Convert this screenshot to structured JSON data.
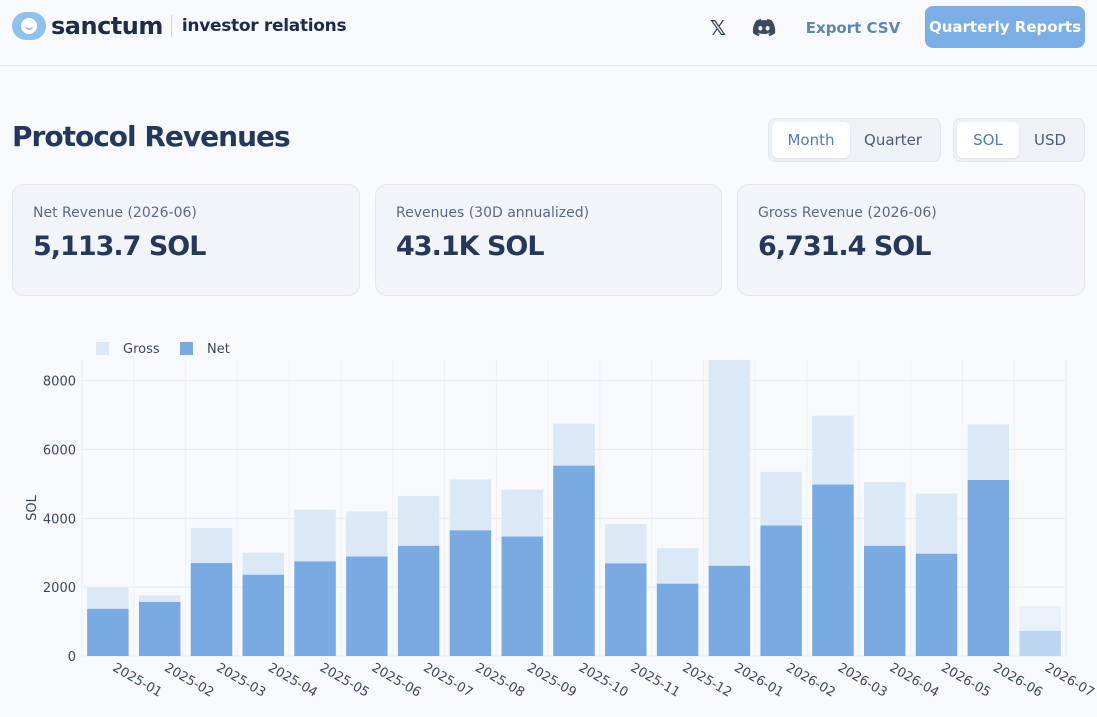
{
  "header": {
    "brand": "sanctum",
    "subtitle": "investor relations",
    "x_icon": "x-logo-icon",
    "discord_icon": "discord-icon",
    "export_label": "Export CSV",
    "reports_label": "Quarterly Reports"
  },
  "page": {
    "title": "Protocol Revenues",
    "period_options": [
      "Month",
      "Quarter"
    ],
    "period_selected": "Month",
    "unit_options": [
      "SOL",
      "USD"
    ],
    "unit_selected": "SOL"
  },
  "cards": [
    {
      "label": "Net Revenue (2026-06)",
      "value": "5,113.7 SOL"
    },
    {
      "label": "Revenues (30D annualized)",
      "value": "43.1K SOL"
    },
    {
      "label": "Gross Revenue (2026-06)",
      "value": "6,731.4 SOL"
    }
  ],
  "colors": {
    "gross": "#dbe8f6",
    "net": "#7aaae2",
    "accent": "#7aaee5"
  },
  "chart_data": {
    "type": "bar",
    "stacked": "overlay",
    "ylabel": "SOL",
    "ylim": [
      0,
      8600
    ],
    "yticks": [
      0,
      2000,
      4000,
      6000,
      8000
    ],
    "legend": [
      "Gross",
      "Net"
    ],
    "legend_position": "top-left",
    "grid": true,
    "categories": [
      "2025-01",
      "2025-02",
      "2025-03",
      "2025-04",
      "2025-05",
      "2025-06",
      "2025-07",
      "2025-08",
      "2025-09",
      "2025-10",
      "2025-11",
      "2025-12",
      "2026-01",
      "2026-02",
      "2026-03",
      "2026-04",
      "2026-05",
      "2026-06",
      "2026-07"
    ],
    "series": [
      {
        "name": "Gross",
        "values": [
          1990,
          1760,
          3720,
          3000,
          4250,
          4200,
          4650,
          5130,
          4830,
          6750,
          3830,
          3130,
          8600,
          5350,
          6980,
          5050,
          4720,
          6731.4,
          1440
        ]
      },
      {
        "name": "Net",
        "values": [
          1370,
          1570,
          2700,
          2360,
          2750,
          2890,
          3200,
          3650,
          3470,
          5530,
          2690,
          2100,
          2620,
          3790,
          4980,
          3200,
          2970,
          5113.7,
          730
        ]
      }
    ]
  }
}
